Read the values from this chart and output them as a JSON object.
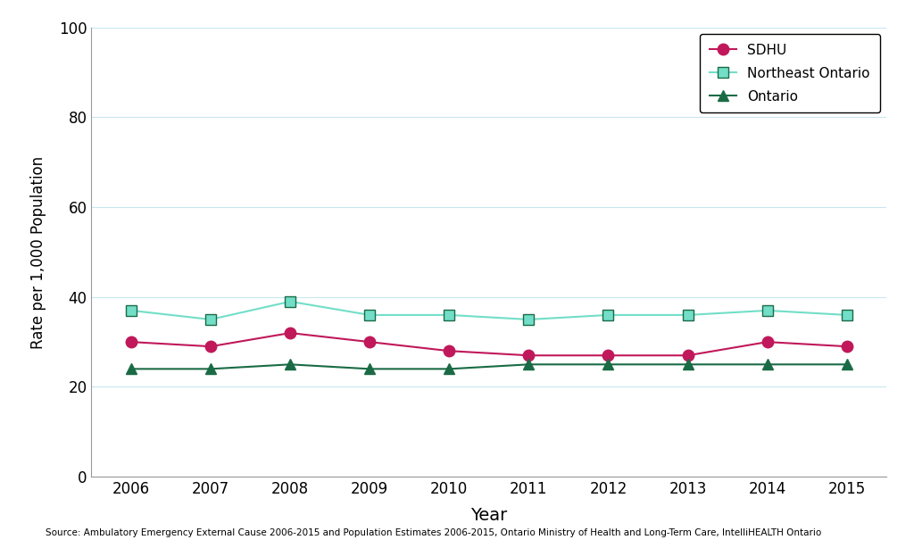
{
  "years": [
    2006,
    2007,
    2008,
    2009,
    2010,
    2011,
    2012,
    2013,
    2014,
    2015
  ],
  "sdhu": [
    30,
    29,
    32,
    30,
    28,
    27,
    27,
    27,
    30,
    29
  ],
  "northeast_ontario": [
    37,
    35,
    39,
    36,
    36,
    35,
    36,
    36,
    37,
    36
  ],
  "ontario": [
    24,
    24,
    25,
    24,
    24,
    25,
    25,
    25,
    25,
    25
  ],
  "sdhu_color": "#C0185A",
  "northeast_color": "#72DEC8",
  "ontario_color": "#1A6B45",
  "sdhu_label": "SDHU",
  "northeast_label": "Northeast Ontario",
  "ontario_label": "Ontario",
  "ylabel": "Rate per 1,000 Population",
  "xlabel": "Year",
  "ylim": [
    0,
    100
  ],
  "yticks": [
    0,
    20,
    40,
    60,
    80,
    100
  ],
  "source_text": "Source: Ambulatory Emergency External Cause 2006-2015 and Population Estimates 2006-2015, Ontario Ministry of Health and Long-Term Care, IntelliHEALTH Ontario",
  "bg_color": "#FFFFFF",
  "grid_color": "#C8E8F0"
}
